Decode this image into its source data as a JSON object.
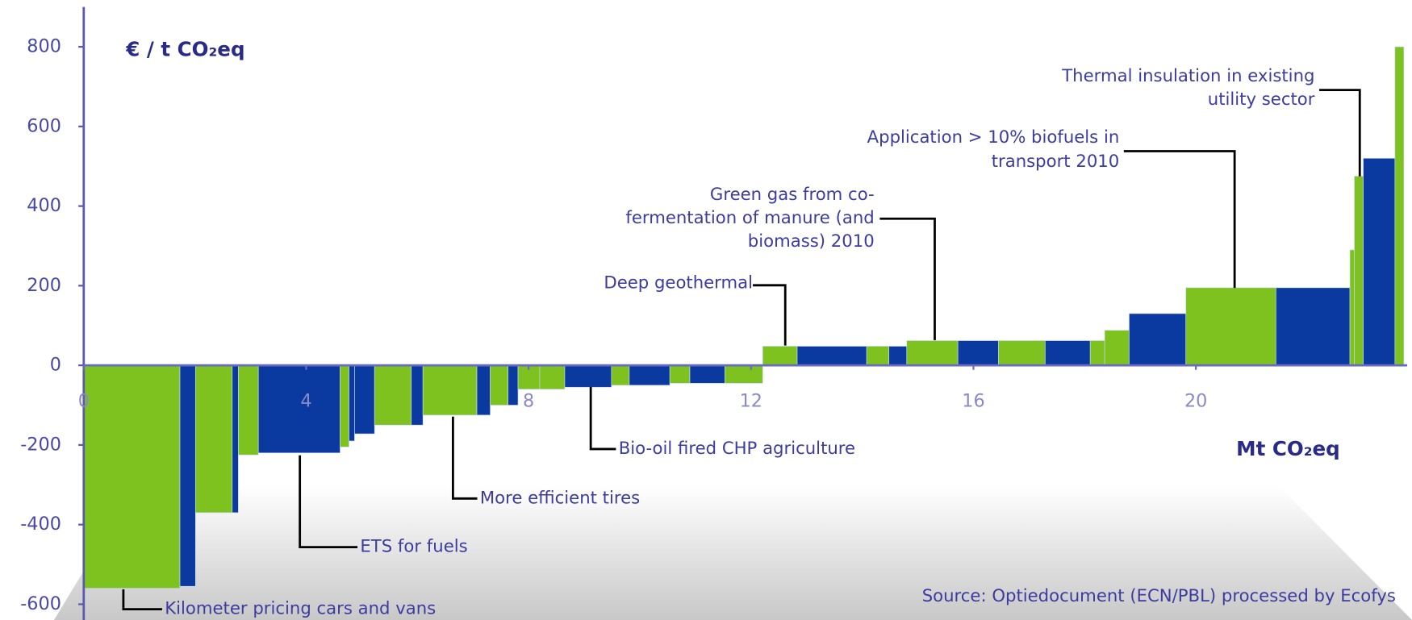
{
  "chart_data": {
    "type": "cost-curve",
    "ylabel": "€ / t CO₂eq",
    "xlabel": "Mt CO₂eq",
    "source": "Source: Optiedocument (ECN/PBL) processed by Ecofys",
    "xlim": [
      0,
      23.8
    ],
    "xticks": [
      0,
      4,
      8,
      12,
      16,
      20
    ],
    "ylim": [
      -650,
      900
    ],
    "yticks": [
      -600,
      -400,
      -200,
      0,
      200,
      400,
      600,
      800
    ],
    "widths": [
      1.73,
      0.28,
      0.66,
      0.11,
      0.36,
      1.47,
      0.16,
      0.1,
      0.36,
      0.66,
      0.21,
      0.97,
      0.24,
      0.32,
      0.18,
      0.39,
      0.45,
      0.84,
      0.32,
      0.73,
      0.36,
      0.63,
      0.68,
      0.62,
      1.25,
      0.4,
      0.32,
      0.92,
      0.73,
      0.84,
      0.81,
      0.26,
      0.44,
      1.02,
      1.62,
      1.33,
      0.08,
      0.16,
      0.57,
      0.16
    ],
    "values": [
      -560,
      -555,
      -370,
      -370,
      -225,
      -220,
      -205,
      -190,
      -172,
      -150,
      -150,
      -125,
      -125,
      -100,
      -100,
      -60,
      -60,
      -55,
      -50,
      -50,
      -45,
      -45,
      -45,
      48,
      48,
      48,
      48,
      62,
      62,
      62,
      62,
      62,
      88,
      130,
      195,
      195,
      290,
      475,
      520,
      800
    ],
    "colors": [
      "#7dc21e",
      "#0a3aa0",
      "#7dc21e",
      "#0a3aa0",
      "#7dc21e",
      "#0a3aa0",
      "#7dc21e",
      "#0a3aa0",
      "#0a3aa0",
      "#7dc21e",
      "#0a3aa0",
      "#7dc21e",
      "#0a3aa0",
      "#7dc21e",
      "#0a3aa0",
      "#7dc21e",
      "#7dc21e",
      "#0a3aa0",
      "#7dc21e",
      "#0a3aa0",
      "#7dc21e",
      "#0a3aa0",
      "#7dc21e",
      "#7dc21e",
      "#0a3aa0",
      "#7dc21e",
      "#0a3aa0",
      "#7dc21e",
      "#0a3aa0",
      "#7dc21e",
      "#0a3aa0",
      "#7dc21e",
      "#7dc21e",
      "#0a3aa0",
      "#7dc21e",
      "#0a3aa0",
      "#7dc21e",
      "#7dc21e",
      "#0a3aa0",
      "#7dc21e"
    ],
    "annotations": [
      [
        "Kilometer pricing cars and vans"
      ],
      [
        "ETS for fuels"
      ],
      [
        "More efficient tires"
      ],
      [
        "Bio-oil fired CHP agriculture"
      ],
      [
        "Deep geothermal"
      ],
      [
        "Green gas from co-",
        "fermentation of manure (and",
        "biomass) 2010"
      ],
      [
        "Application > 10% biofuels in",
        "transport 2010"
      ],
      [
        "Thermal insulation in existing",
        "utility sector"
      ]
    ]
  }
}
